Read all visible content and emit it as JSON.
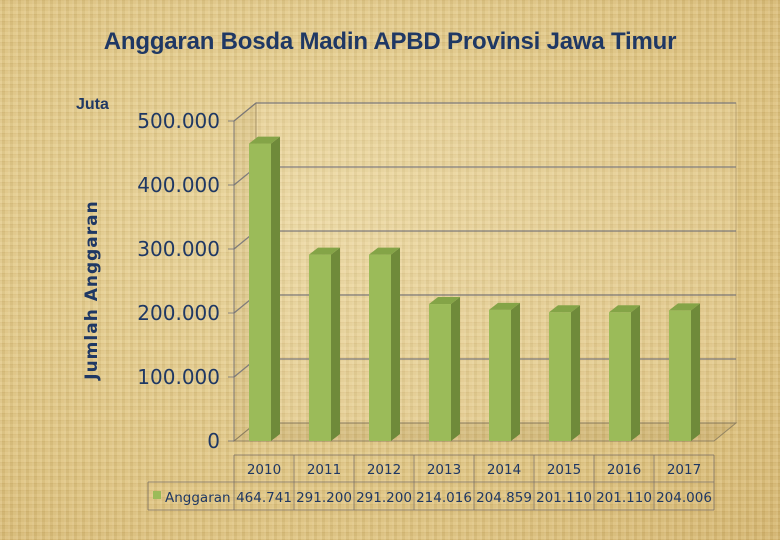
{
  "chart_data": {
    "type": "bar",
    "title": "Anggaran Bosda Madin APBD Provinsi Jawa Timur",
    "unit_label": "Juta",
    "ylabel": "Jumlah Anggaran",
    "xlabel": "",
    "ylim": [
      0,
      500000
    ],
    "yticks": [
      0,
      100000,
      200000,
      300000,
      400000,
      500000
    ],
    "ytick_labels": [
      "0",
      "100.000",
      "200.000",
      "300.000",
      "400.000",
      "500.000"
    ],
    "categories": [
      "2010",
      "2011",
      "2012",
      "2013",
      "2014",
      "2015",
      "2016",
      "2017"
    ],
    "series": [
      {
        "name": "Anggaran",
        "values": [
          464741,
          291200,
          291200,
          214016,
          204859,
          201110,
          201110,
          204006
        ],
        "value_labels": [
          "464.741",
          "291.200",
          "291.200",
          "214.016",
          "204.859",
          "201.110",
          "201.110",
          "204.006"
        ],
        "color": "#9bbb59"
      }
    ],
    "grid": true,
    "style": "3d-column",
    "legend": "data-table"
  }
}
